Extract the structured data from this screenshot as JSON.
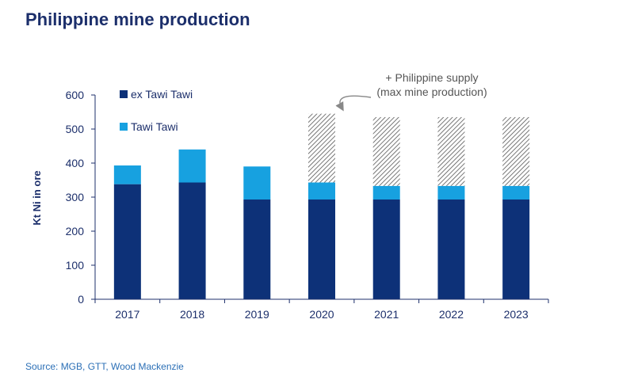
{
  "title": "Philippine mine production",
  "source": "Source: MGB, GTT, Wood Mackenzie",
  "chart_data": {
    "type": "bar",
    "stacked": true,
    "categories": [
      "2017",
      "2018",
      "2019",
      "2020",
      "2021",
      "2022",
      "2023"
    ],
    "series": [
      {
        "name": "ex Tawi Tawi",
        "color": "#0d3178",
        "values": [
          338,
          343,
          293,
          293,
          293,
          293,
          293
        ]
      },
      {
        "name": "Tawi Tawi",
        "color": "#17a1e0",
        "values": [
          55,
          97,
          97,
          50,
          40,
          40,
          40
        ]
      },
      {
        "name": "",
        "pattern": "hatched",
        "color": "#555555",
        "values": [
          0,
          0,
          0,
          202,
          202,
          202,
          202
        ]
      }
    ],
    "ylabel": "Kt Ni in ore",
    "xlabel": "",
    "ylim": [
      0,
      600
    ],
    "yticks": [
      0,
      100,
      200,
      300,
      400,
      500,
      600
    ],
    "legend_position": "top-left",
    "annotation": {
      "lines": [
        "+ Philippine supply",
        "(max mine production)"
      ],
      "target": "2020"
    },
    "grid": false
  }
}
